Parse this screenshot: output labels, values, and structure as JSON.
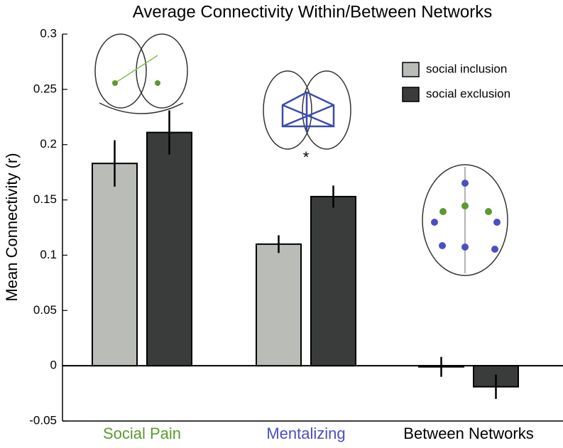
{
  "chart_data": {
    "type": "bar",
    "title": "Average Connectivity Within/Between Networks",
    "y_label": "Mean Connectivity (r)",
    "categories": [
      "Social Pain",
      "Mentalizing",
      "Between Networks"
    ],
    "category_colors": [
      "#5b9a2e",
      "#4a4fc4",
      "#000000"
    ],
    "series": [
      {
        "name": "social inclusion",
        "color": "#b9bcb7",
        "values": [
          0.183,
          0.11,
          -0.001
        ],
        "errors": [
          0.021,
          0.008,
          0.009
        ]
      },
      {
        "name": "social exclusion",
        "color": "#3a3b3b",
        "values": [
          0.211,
          0.153,
          -0.019
        ],
        "errors": [
          0.02,
          0.01,
          0.011
        ]
      }
    ],
    "annotations": [
      {
        "text": "*",
        "category": 1,
        "y": 0.19
      }
    ],
    "ylim": [
      -0.05,
      0.3
    ],
    "yticks": [
      -0.05,
      0,
      0.05,
      0.1,
      0.15,
      0.2,
      0.25,
      0.3
    ],
    "legend": "upper right"
  }
}
